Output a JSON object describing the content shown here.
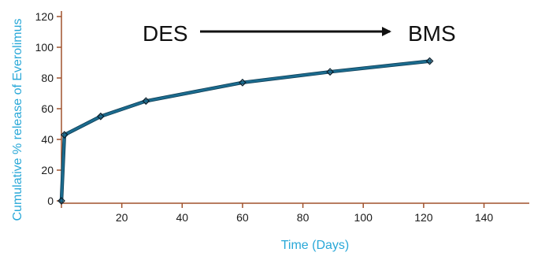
{
  "chart_data": {
    "type": "line",
    "title": "",
    "xlabel": "Time (Days)",
    "ylabel": "Cumulative % release of Everolimus",
    "xlim": [
      0,
      155
    ],
    "ylim": [
      0,
      120
    ],
    "x_ticks": [
      20,
      40,
      60,
      80,
      100,
      120,
      140
    ],
    "y_ticks": [
      0,
      20,
      40,
      60,
      80,
      100,
      120
    ],
    "grid": false,
    "legend": "none",
    "series": [
      {
        "x": [
          0,
          1,
          13,
          28,
          60,
          89,
          122
        ],
        "y": [
          0,
          43,
          55,
          65,
          77,
          84,
          91
        ]
      }
    ],
    "annotation": {
      "left_label": "DES",
      "right_label": "BMS",
      "arrow": "right"
    },
    "colors": {
      "series_line": "#1b6b8e",
      "axes": "#a0522d",
      "axis_title": "#29a8d8",
      "text": "#1a1a1a"
    }
  }
}
